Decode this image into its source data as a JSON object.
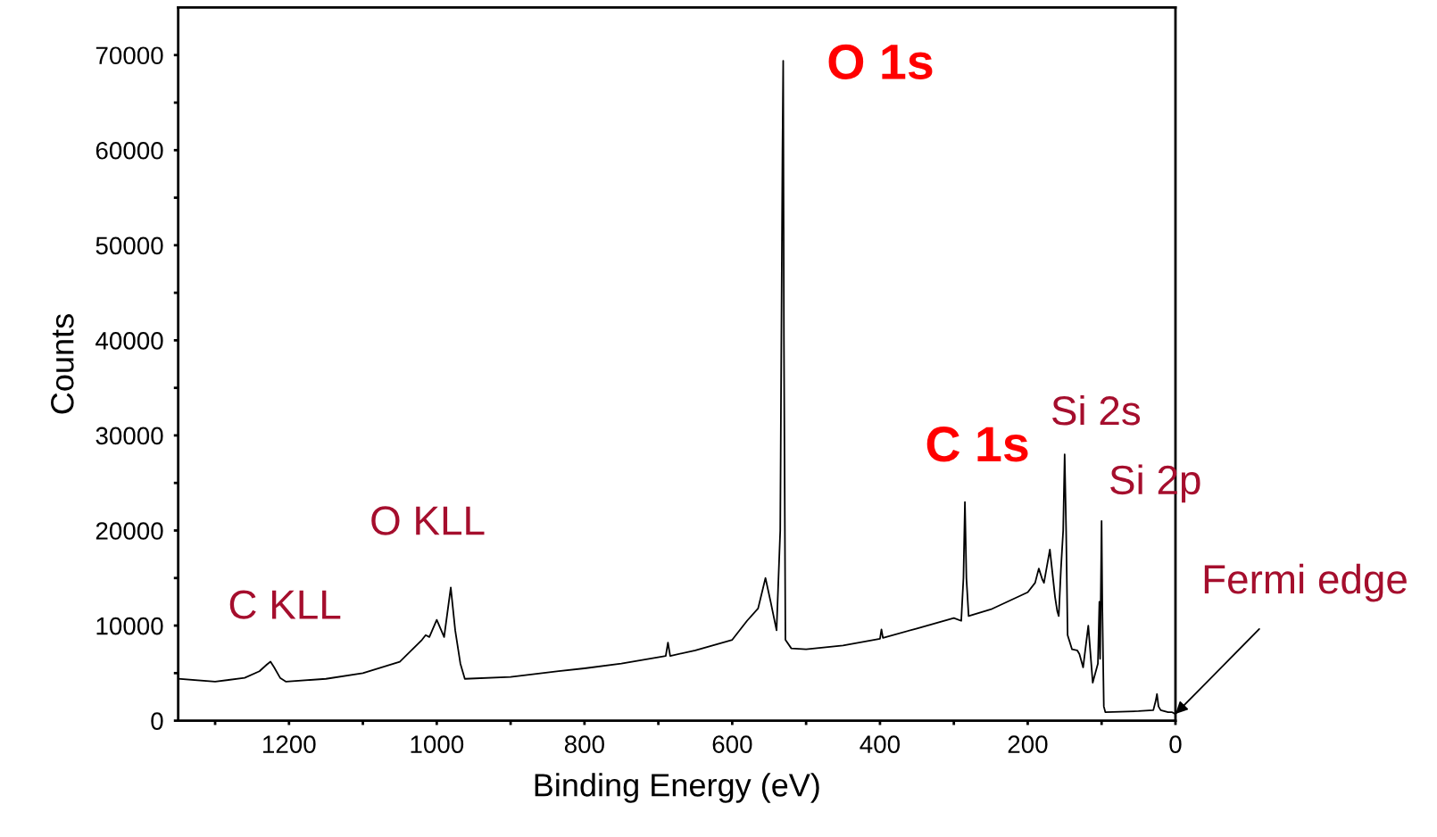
{
  "chart_data": {
    "type": "line",
    "xlabel": "Binding Energy (eV)",
    "ylabel": "Counts",
    "xlim": [
      1350,
      0
    ],
    "ylim": [
      0,
      75000
    ],
    "xticks": [
      {
        "value": 1300,
        "label": null
      },
      1200,
      {
        "value": 1100,
        "label": null
      },
      1000,
      {
        "value": 900,
        "label": null
      },
      800,
      {
        "value": 700,
        "label": null
      },
      600,
      {
        "value": 500,
        "label": null
      },
      400,
      {
        "value": 300,
        "label": null
      },
      200,
      {
        "value": 100,
        "label": null
      },
      0
    ],
    "yticks": [
      0,
      {
        "value": 5000,
        "label": null
      },
      10000,
      {
        "value": 15000,
        "label": null
      },
      20000,
      {
        "value": 25000,
        "label": null
      },
      30000,
      {
        "value": 35000,
        "label": null
      },
      40000,
      {
        "value": 45000,
        "label": null
      },
      50000,
      {
        "value": 55000,
        "label": null
      },
      60000,
      {
        "value": 65000,
        "label": null
      },
      70000
    ],
    "grid": false,
    "marker": "none",
    "line_style": "solid",
    "series": [
      {
        "color": "#000000",
        "x": [
          1350,
          1300,
          1260,
          1240,
          1230,
          1225,
          1220,
          1212,
          1204,
          1150,
          1100,
          1050,
          1020,
          1015,
          1010,
          1000,
          990,
          981,
          975,
          968,
          962,
          900,
          835,
          800,
          750,
          690,
          687,
          684,
          650,
          600,
          580,
          565,
          555,
          548,
          540,
          535,
          532,
          531,
          530,
          528,
          520,
          500,
          450,
          400,
          398,
          396,
          350,
          300,
          290,
          287,
          285,
          283,
          280,
          250,
          200,
          190,
          185,
          180,
          178,
          170,
          163,
          160,
          158,
          155,
          152,
          150,
          148,
          146,
          140,
          133,
          130,
          125,
          118,
          112,
          105,
          103,
          102,
          100,
          99,
          97,
          95,
          50,
          30,
          27,
          25,
          23,
          20,
          10,
          5,
          0
        ],
        "values": [
          4400,
          4100,
          4500,
          5200,
          5900,
          6200,
          5600,
          4500,
          4100,
          4400,
          5000,
          6200,
          8500,
          9000,
          8800,
          10600,
          8800,
          14000,
          9500,
          6000,
          4400,
          4600,
          5200,
          5500,
          6000,
          6800,
          8200,
          6800,
          7400,
          8500,
          10500,
          11800,
          15000,
          12500,
          9500,
          20000,
          60000,
          69400,
          40000,
          8500,
          7600,
          7500,
          7900,
          8600,
          9600,
          8700,
          9700,
          10800,
          10500,
          15000,
          23000,
          15000,
          11000,
          11700,
          13500,
          14500,
          16000,
          14800,
          14500,
          18000,
          13000,
          11500,
          11000,
          16000,
          20000,
          28000,
          20000,
          9000,
          7500,
          7400,
          7000,
          5600,
          10000,
          4000,
          6000,
          12500,
          6500,
          21000,
          12000,
          1500,
          900,
          1000,
          1100,
          2000,
          2800,
          1500,
          1100,
          900,
          900,
          700
        ]
      }
    ],
    "annotations": [
      {
        "text": "O 1s",
        "x": 531,
        "y": 69400
      },
      {
        "text": "C 1s",
        "x": 285,
        "y": 23000
      },
      {
        "text": "Si 2s",
        "x": 150,
        "y": 28000
      },
      {
        "text": "Si 2p",
        "x": 100,
        "y": 21000
      },
      {
        "text": "O KLL",
        "x": 981,
        "y": 14000
      },
      {
        "text": "C KLL",
        "x": 1225,
        "y": 6200
      },
      {
        "text": "Fermi edge",
        "x": 0,
        "y": 700
      }
    ]
  }
}
